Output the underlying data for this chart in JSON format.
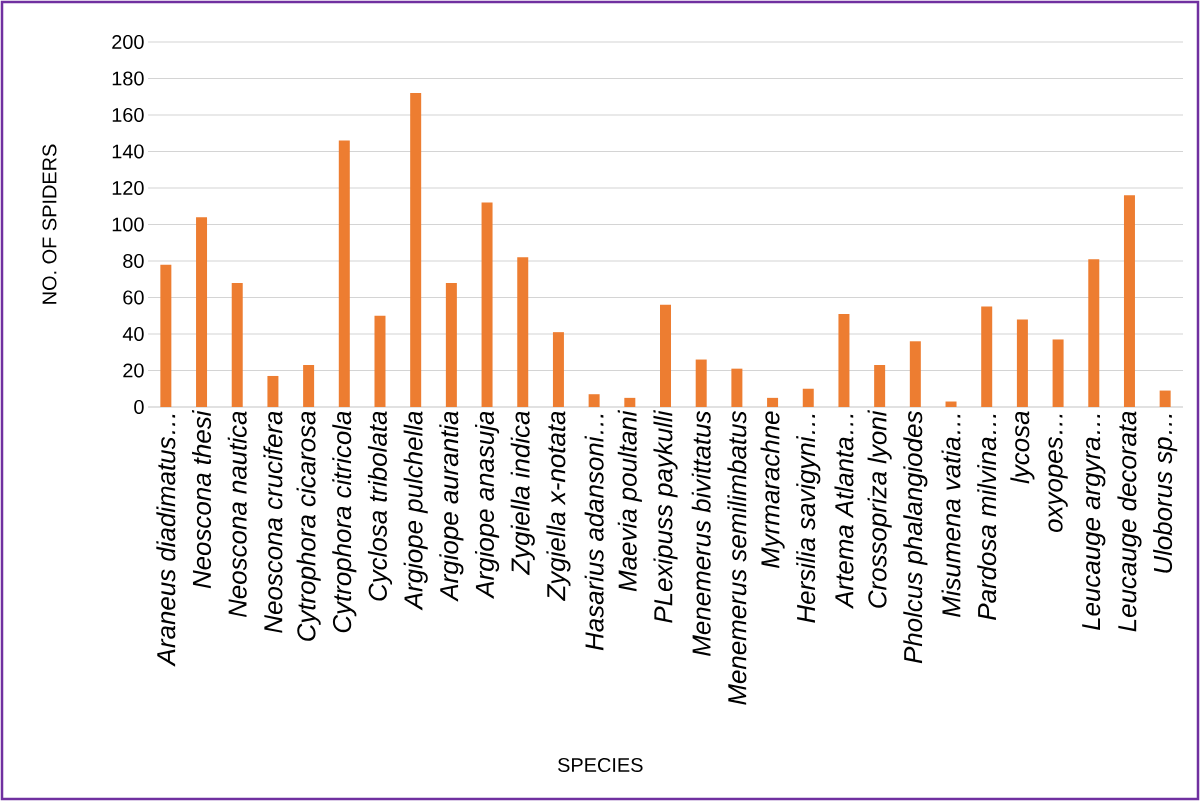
{
  "chart_data": {
    "type": "bar",
    "xlabel": "SPECIES",
    "ylabel": "NO. OF SPIDERS",
    "categories": [
      "Araneus diadimatus…",
      "Neoscona thesi",
      "Neoscona nautica",
      "Neoscona crucifera",
      "Cytrophora cicarosa",
      "Cytrophora citricola",
      "Cyclosa tribolata",
      "Argiope pulchella",
      "Argiope aurantia",
      "Argiope anasuja",
      "Zygiella indica",
      "Zygiella x-notata",
      "Hasarius adansoni…",
      "Maevia poultani",
      "PLexipuss paykulli",
      "Menemerus bivittatus",
      "Menemerus semilimbatus",
      "Myrmarachne",
      "Hersilia savigyni…",
      "Artema Atlanta…",
      "Crossopriza lyoni",
      "Pholcus phalangiodes",
      "Misumena vatia…",
      "Pardosa milvina…",
      "lycosa",
      "oxyopes…",
      "Leucauge argyra…",
      "Leucauge decorata",
      "Uloborus sp…"
    ],
    "values": [
      78,
      104,
      68,
      17,
      23,
      146,
      50,
      172,
      68,
      112,
      82,
      41,
      7,
      5,
      56,
      26,
      21,
      5,
      10,
      51,
      23,
      36,
      3,
      55,
      48,
      37,
      81,
      116,
      9
    ],
    "color": "#ed7d31",
    "ylim": [
      0,
      200
    ],
    "yticks": [
      0,
      20,
      40,
      60,
      80,
      100,
      120,
      140,
      160,
      180,
      200
    ],
    "grid": "y"
  }
}
